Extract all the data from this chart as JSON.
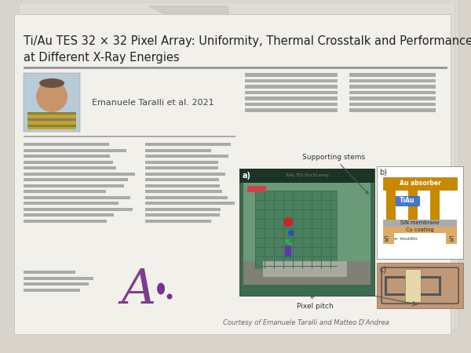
{
  "bg_outer": "#d8d4cc",
  "bg_paper": "#f2f0ea",
  "title": "Ti/Au TES 32 × 32 Pixel Array: Uniformity, Thermal Crosstalk and Performance\nat Different X-Ray Energies",
  "title_fontsize": 10.5,
  "title_color": "#222222",
  "author_text": "Emanuele Taralli et al. 2021",
  "author_fontsize": 8,
  "divider_color": "#999999",
  "line_color": "#aaaaaa",
  "purple_logo_color": "#7b3f8c",
  "logo_dot_color": "#8b4fa0",
  "paper_shadow_color": "#c0bcb4",
  "caption_text": "Courtesy of Emanuele Taralli and Matteo D'Andrea",
  "caption_fontsize": 6,
  "pixel_pitch_text": "Pixel pitch",
  "supporting_stems_text": "Supporting stems",
  "panel_a_label": "a)",
  "panel_b_label": "b)",
  "panel_c_label": "c)",
  "absorber_text": "Au absorber",
  "tiau_text": "TiAu",
  "sin_text": "SiN membrane",
  "cu_text": "Cu coating",
  "muntin_text": "muntin",
  "si_text_left": "Si",
  "si_text_right": "Si"
}
